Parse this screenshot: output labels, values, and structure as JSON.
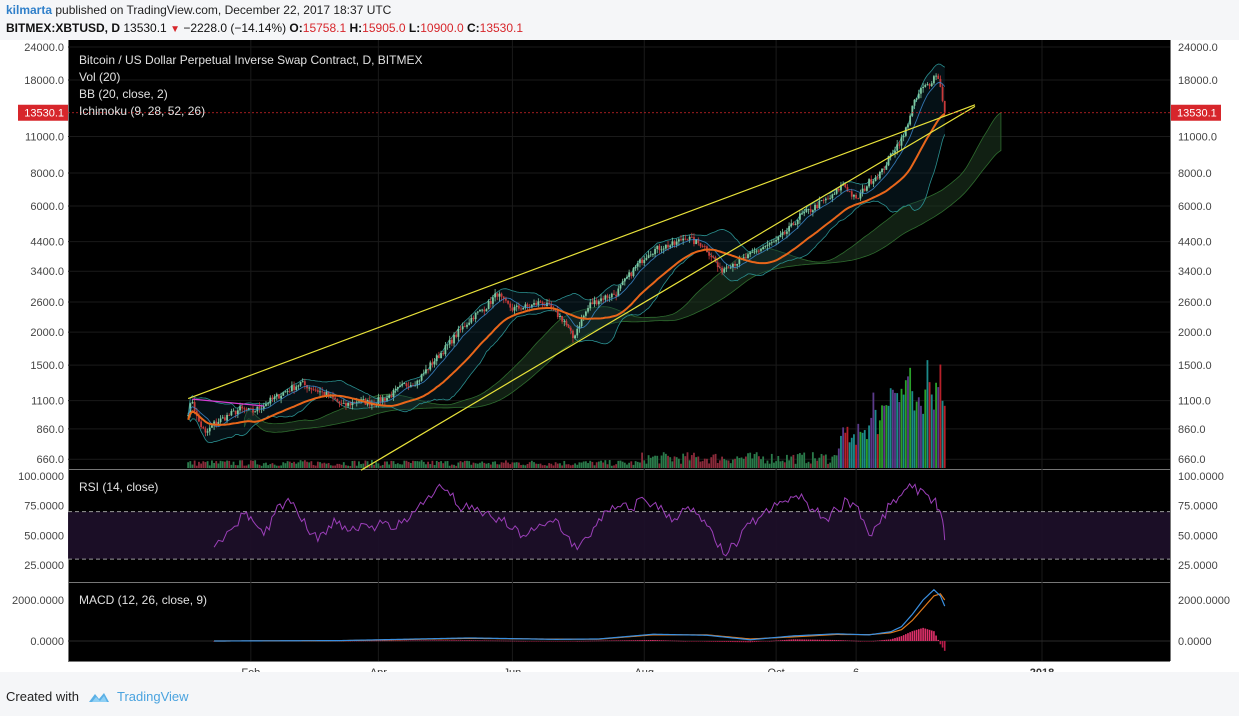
{
  "header": {
    "author": "kilmarta",
    "published_text": "published on TradingView.com, December 22, 2017 18:37 UTC",
    "symbol": "BITMEX:XBTUSD, D",
    "last": "13530.1",
    "change": "−2228.0 (−14.14%)",
    "o_label": "O:",
    "o_value": "15758.1",
    "h_label": "H:",
    "h_value": "15905.0",
    "l_label": "L:",
    "l_value": "10900.0",
    "c_label": "C:",
    "c_value": "13530.1"
  },
  "legend": {
    "title": "Bitcoin / US Dollar Perpetual Inverse Swap Contract, D, BITMEX",
    "vol": "Vol (20)",
    "bb": "BB (20, close, 2)",
    "ichimoku": "Ichimoku (9, 28, 52, 26)",
    "rsi": "RSI (14, close)",
    "macd": "MACD (12, 26, close, 9)"
  },
  "price_badge": "13530.1",
  "footer": {
    "created_with": "Created with",
    "brand": "TradingView"
  },
  "colors": {
    "bg": "#000000",
    "grid": "#1a1a1a",
    "axis_text": "#d0d0d0",
    "up": "#7ec8a0",
    "down": "#c83a3a",
    "trendline": "#e8e23a",
    "magenta_line": "#d63fd6",
    "kijun": "#e8661a",
    "tenkan": "#3d8fd6",
    "rsi": "#9b3fb8",
    "badge": "#d7262b"
  },
  "chart_data": [
    {
      "type": "candlestick",
      "title": "Bitcoin / US Dollar Perpetual Inverse Swap Contract, D, BITMEX",
      "scale": "log",
      "y_ticks": [
        "24000.0",
        "18000.0",
        "13530.1",
        "11000.0",
        "8000.0",
        "6000.0",
        "4400.0",
        "3400.0",
        "2600.0",
        "2000.0",
        "1500.0",
        "1100.0",
        "860.0",
        "660.0"
      ],
      "y_tick_values": [
        24000,
        18000,
        11000,
        8000,
        6000,
        4400,
        3400,
        2600,
        2000,
        1500,
        1100,
        860,
        660
      ],
      "x_ticks": [
        "Feb",
        "Apr",
        "Jun",
        "Aug",
        "Oct",
        "6",
        "2018"
      ],
      "x_tick_days": [
        -1,
        58,
        120,
        181,
        242,
        279,
        365
      ],
      "close_path": [
        [
          -30,
          1000
        ],
        [
          -28,
          1100
        ],
        [
          -26,
          950
        ],
        [
          -22,
          820
        ],
        [
          -18,
          900
        ],
        [
          -12,
          960
        ],
        [
          -6,
          1020
        ],
        [
          0,
          1000
        ],
        [
          8,
          1100
        ],
        [
          15,
          1190
        ],
        [
          22,
          1280
        ],
        [
          28,
          1220
        ],
        [
          35,
          1150
        ],
        [
          42,
          1050
        ],
        [
          48,
          1100
        ],
        [
          55,
          1080
        ],
        [
          62,
          1130
        ],
        [
          70,
          1260
        ],
        [
          76,
          1300
        ],
        [
          82,
          1500
        ],
        [
          88,
          1700
        ],
        [
          95,
          2000
        ],
        [
          102,
          2300
        ],
        [
          108,
          2500
        ],
        [
          113,
          2800
        ],
        [
          116,
          2600
        ],
        [
          120,
          2450
        ],
        [
          128,
          2500
        ],
        [
          133,
          2600
        ],
        [
          138,
          2450
        ],
        [
          144,
          2200
        ],
        [
          148,
          1900
        ],
        [
          151,
          2150
        ],
        [
          156,
          2550
        ],
        [
          162,
          2700
        ],
        [
          168,
          2800
        ],
        [
          173,
          3200
        ],
        [
          178,
          3600
        ],
        [
          183,
          4000
        ],
        [
          189,
          4200
        ],
        [
          195,
          4300
        ],
        [
          200,
          4600
        ],
        [
          204,
          4400
        ],
        [
          208,
          4300
        ],
        [
          213,
          3800
        ],
        [
          216,
          3400
        ],
        [
          220,
          3600
        ],
        [
          225,
          3700
        ],
        [
          230,
          3900
        ],
        [
          236,
          4200
        ],
        [
          242,
          4400
        ],
        [
          248,
          4900
        ],
        [
          253,
          5500
        ],
        [
          258,
          5800
        ],
        [
          263,
          6200
        ],
        [
          268,
          6500
        ],
        [
          273,
          7300
        ],
        [
          279,
          6300
        ],
        [
          285,
          7400
        ],
        [
          291,
          8100
        ],
        [
          296,
          9700
        ],
        [
          301,
          11000
        ],
        [
          305,
          14200
        ],
        [
          309,
          16500
        ],
        [
          313,
          17500
        ],
        [
          316,
          19000
        ],
        [
          318,
          17200
        ],
        [
          320,
          13530
        ]
      ],
      "trendlines": [
        {
          "name": "upper",
          "points": [
            [
              -30,
              1120
            ],
            [
              334,
              14500
            ]
          ]
        },
        {
          "name": "lower",
          "points": [
            [
              50,
              600
            ],
            [
              334,
              14300
            ]
          ]
        },
        {
          "name": "magenta",
          "points": [
            [
              -28,
              1115
            ],
            [
              5,
              1050
            ]
          ]
        }
      ]
    },
    {
      "type": "volume",
      "title": "Vol (20)"
    },
    {
      "type": "line",
      "title": "RSI (14, close)",
      "y_ticks": [
        "100.0000",
        "75.0000",
        "50.0000",
        "25.0000"
      ],
      "ylim": [
        20,
        100
      ],
      "band": [
        30,
        70
      ],
      "x": [
        -18,
        -10,
        -4,
        0,
        5,
        10,
        15,
        20,
        25,
        30,
        35,
        40,
        45,
        50,
        55,
        60,
        65,
        70,
        75,
        80,
        85,
        90,
        95,
        100,
        105,
        110,
        115,
        120,
        125,
        130,
        135,
        140,
        145,
        150,
        155,
        160,
        165,
        170,
        175,
        180,
        185,
        190,
        195,
        200,
        205,
        210,
        215,
        220,
        225,
        230,
        235,
        240,
        245,
        250,
        255,
        260,
        265,
        270,
        275,
        280,
        285,
        290,
        295,
        300,
        305,
        310,
        315,
        318,
        320
      ],
      "values": [
        40,
        55,
        68,
        62,
        50,
        68,
        78,
        72,
        55,
        45,
        58,
        62,
        54,
        60,
        58,
        60,
        55,
        64,
        70,
        80,
        90,
        88,
        74,
        72,
        70,
        66,
        62,
        55,
        50,
        54,
        58,
        64,
        50,
        38,
        48,
        64,
        70,
        74,
        72,
        82,
        76,
        70,
        64,
        72,
        68,
        58,
        40,
        36,
        46,
        60,
        66,
        72,
        78,
        82,
        80,
        70,
        64,
        72,
        80,
        74,
        50,
        60,
        76,
        84,
        90,
        88,
        80,
        70,
        46
      ]
    },
    {
      "type": "line",
      "title": "MACD (12, 26, close, 9)",
      "y_ticks": [
        "2000.0000",
        "0.0000"
      ],
      "series": [
        {
          "name": "MACD",
          "x": [
            -18,
            40,
            100,
            140,
            160,
            185,
            210,
            230,
            250,
            270,
            285,
            295,
            300,
            305,
            310,
            315,
            318,
            320
          ],
          "values": [
            0,
            20,
            150,
            80,
            100,
            330,
            280,
            60,
            250,
            350,
            300,
            450,
            700,
            1300,
            2000,
            2500,
            2200,
            1700
          ]
        },
        {
          "name": "Signal",
          "x": [
            -18,
            40,
            100,
            140,
            160,
            185,
            210,
            230,
            250,
            270,
            285,
            295,
            300,
            305,
            310,
            315,
            318,
            320
          ],
          "values": [
            0,
            15,
            130,
            90,
            90,
            300,
            300,
            100,
            200,
            320,
            310,
            400,
            550,
            1000,
            1600,
            2200,
            2300,
            2000
          ]
        }
      ]
    }
  ]
}
